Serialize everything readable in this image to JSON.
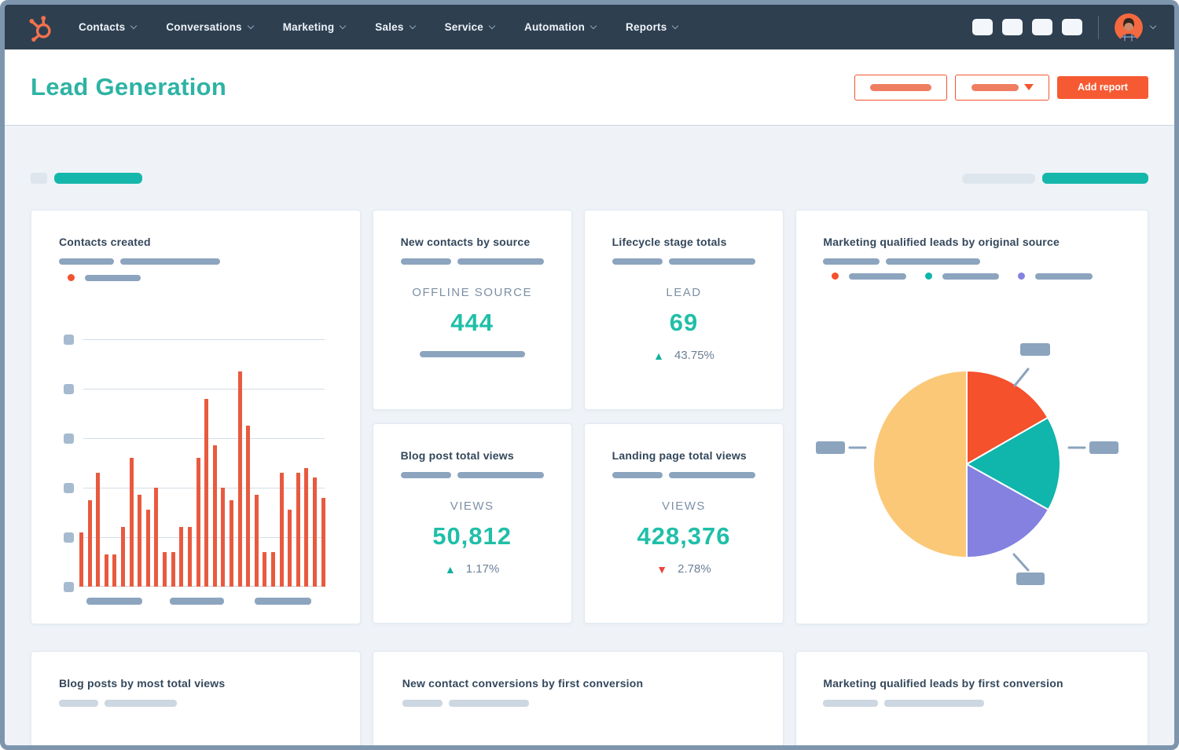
{
  "nav": {
    "logo": "hubspot-sprocket",
    "items": [
      {
        "label": "Contacts"
      },
      {
        "label": "Conversations"
      },
      {
        "label": "Marketing"
      },
      {
        "label": "Sales"
      },
      {
        "label": "Service"
      },
      {
        "label": "Automation"
      },
      {
        "label": "Reports"
      }
    ],
    "icon_placeholder_count": 4
  },
  "header": {
    "title": "Lead Generation",
    "add_report_label": "Add report"
  },
  "icons": {
    "up_triangle": "▲",
    "down_triangle": "▼"
  },
  "cards": {
    "contacts_created": {
      "title": "Contacts created"
    },
    "new_contacts_by_source": {
      "title": "New contacts by source",
      "metric_label": "OFFLINE SOURCE",
      "metric_value": "444"
    },
    "lifecycle_stage_totals": {
      "title": "Lifecycle stage totals",
      "metric_label": "LEAD",
      "metric_value": "69",
      "delta": "43.75%",
      "delta_direction": "up"
    },
    "blog_post_total_views": {
      "title": "Blog post total views",
      "metric_label": "VIEWS",
      "metric_value": "50,812",
      "delta": "1.17%",
      "delta_direction": "up"
    },
    "landing_page_total_views": {
      "title": "Landing page total views",
      "metric_label": "VIEWS",
      "metric_value": "428,376",
      "delta": "2.78%",
      "delta_direction": "down"
    },
    "mql_by_original_source": {
      "title": "Marketing qualified leads by original source"
    },
    "blog_posts_by_most_total_views": {
      "title": "Blog posts by most total views"
    },
    "new_contact_conversions_by_first_conversion": {
      "title": "New contact conversions by first conversion"
    },
    "mql_by_first_conversion": {
      "title": "Marketing qualified leads by first conversion"
    }
  },
  "colors": {
    "nav_background": "#2e3f50",
    "accent_orange": "#f4542e",
    "brand_teal": "#2eb3a4",
    "metric_teal": "#1fbfa8",
    "negative_red": "#e8463c",
    "placeholder_blue_gray": "#8ca4be",
    "placeholder_light_gray": "#ccd7e2",
    "page_background": "#eff3f8",
    "bar_orange": "#e85a3f",
    "pie_orange": "#f4512c",
    "pie_teal": "#10b5ab",
    "pie_purple": "#8481e0",
    "pie_yellow": "#fbc878"
  },
  "chart_data": [
    {
      "type": "bar",
      "title": "Contacts created",
      "ylim": [
        0,
        100
      ],
      "gridline_count": 6,
      "bar_color": "#e85a3f",
      "values": [
        22,
        35,
        46,
        13,
        13,
        24,
        52,
        37,
        31,
        40,
        14,
        14,
        24,
        24,
        52,
        76,
        57,
        40,
        35,
        87,
        65,
        37,
        14,
        14,
        46,
        31,
        46,
        48,
        44,
        36
      ],
      "axis_labels": "placeholder blocks (redacted labels)",
      "legend": "one series, orange, placeholder label"
    },
    {
      "type": "pie",
      "title": "Marketing qualified leads by original source",
      "start_angle_deg": 0,
      "slices": [
        {
          "name": "slice-1",
          "color": "#f4512c",
          "pct": 16.7
        },
        {
          "name": "slice-2",
          "color": "#10b5ab",
          "pct": 16.4
        },
        {
          "name": "slice-3",
          "color": "#8481e0",
          "pct": 16.9
        },
        {
          "name": "slice-4",
          "color": "#fbc878",
          "pct": 50.0
        }
      ],
      "labels": "4 placeholder callout blocks",
      "legend": "3 placeholder entries (orange, teal, purple dots)"
    }
  ]
}
